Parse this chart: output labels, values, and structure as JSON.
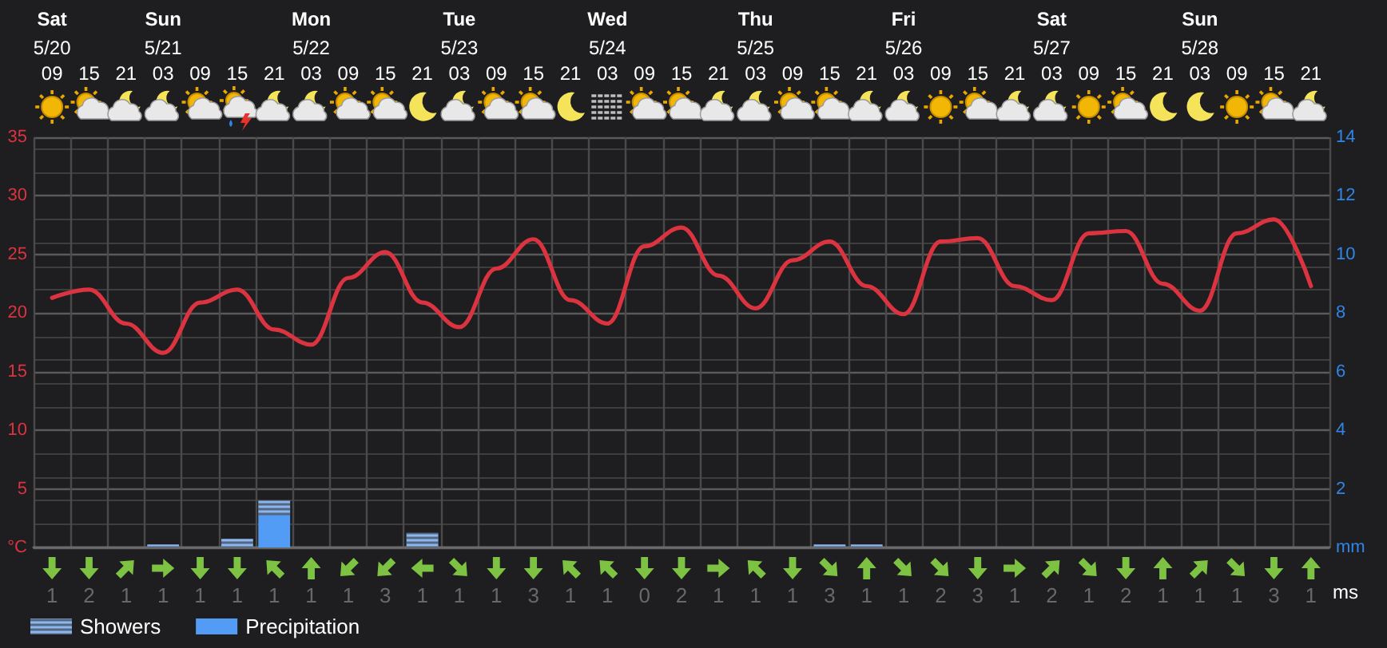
{
  "chart_data": [
    {
      "type": "line",
      "categories": [
        "09",
        "15",
        "21",
        "03",
        "09",
        "15",
        "21",
        "03",
        "09",
        "15",
        "21",
        "03",
        "09",
        "15",
        "21",
        "03",
        "09",
        "15",
        "21",
        "03",
        "09",
        "15",
        "21",
        "03",
        "09",
        "15",
        "21",
        "03",
        "09",
        "15",
        "21",
        "03",
        "09",
        "15",
        "21"
      ],
      "annotations": [
        "Sat",
        "5/20",
        "Sun",
        "5/21",
        "Mon",
        "5/22",
        "Tue",
        "5/23",
        "Wed",
        "5/24",
        "Thu",
        "5/25",
        "Fri",
        "5/26",
        "Sat",
        "5/27",
        "Sun",
        "5/28"
      ],
      "ylim": [
        0,
        35
      ],
      "yticks": [
        {
          "value": 0,
          "label": "°C"
        },
        5,
        10,
        15,
        20,
        25,
        30,
        35
      ],
      "y2lim": [
        0,
        14
      ],
      "y2ticks": [
        {
          "value": 0,
          "label": "mm"
        },
        2,
        4,
        6,
        8,
        10,
        12,
        14
      ],
      "grid": true,
      "legend": "bottom left",
      "stacked": true,
      "marker": "none",
      "series": [
        {
          "color": "#dc3340",
          "values": [
            21.3,
            22.0,
            19.1,
            16.6,
            20.9,
            22.0,
            18.6,
            17.3,
            23.0,
            25.2,
            20.9,
            18.8,
            23.8,
            26.3,
            21.1,
            19.1,
            25.7,
            27.3,
            23.2,
            20.4,
            24.5,
            26.1,
            22.3,
            19.9,
            26.1,
            26.4,
            22.3,
            21.1,
            26.8,
            27.0,
            22.5,
            20.2,
            26.8,
            28.0,
            22.3
          ]
        },
        {
          "type": "bar",
          "axis": "y2",
          "name": "Precipitation",
          "color": "#539cf5",
          "values": [
            null,
            null,
            null,
            null,
            null,
            null,
            1.1,
            null,
            null,
            null,
            null,
            null,
            null,
            null,
            null,
            null,
            null,
            null,
            null,
            null,
            null,
            null,
            null,
            null,
            null,
            null,
            null,
            null,
            null,
            null,
            null,
            null,
            null,
            null,
            null
          ]
        },
        {
          "type": "bar",
          "axis": "y2",
          "name": "Showers",
          "color": "#8cb6ee",
          "values": [
            null,
            null,
            null,
            0.1,
            null,
            0.3,
            0.5,
            null,
            null,
            null,
            0.5,
            null,
            null,
            null,
            null,
            null,
            null,
            null,
            null,
            null,
            null,
            0.1,
            0.1,
            null,
            null,
            null,
            null,
            null,
            null,
            null,
            null,
            null,
            null,
            null,
            null
          ]
        }
      ]
    },
    {
      "type": "other",
      "ylabel": "ms",
      "data_labels": true,
      "color": "#7a7a7a",
      "categories": [
        null,
        null,
        null,
        null,
        null,
        null,
        null,
        null,
        null,
        null,
        null,
        null,
        null,
        null,
        null,
        null,
        null,
        null,
        null,
        null,
        null,
        null,
        null,
        null,
        null,
        null,
        null,
        null,
        null,
        null,
        null,
        null,
        null,
        null,
        null
      ],
      "values": [
        1,
        2,
        1,
        1,
        1,
        1,
        1,
        1,
        1,
        3,
        1,
        1,
        1,
        3,
        1,
        1,
        0,
        2,
        1,
        1,
        1,
        3,
        1,
        1,
        2,
        3,
        1,
        2,
        1,
        2,
        1,
        1,
        1,
        3,
        1
      ]
    }
  ]
}
